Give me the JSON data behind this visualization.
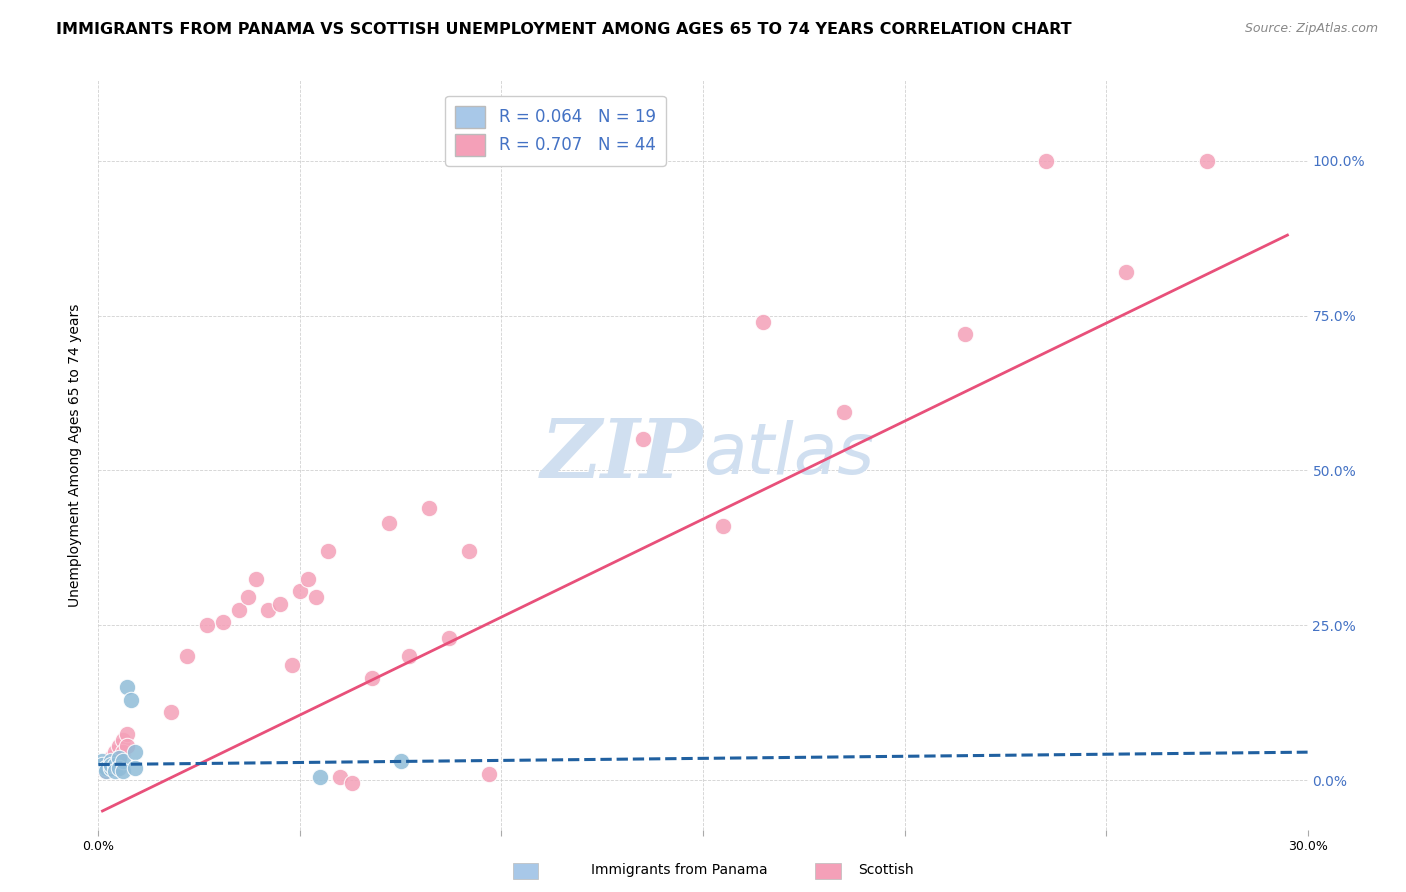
{
  "title": "IMMIGRANTS FROM PANAMA VS SCOTTISH UNEMPLOYMENT AMONG AGES 65 TO 74 YEARS CORRELATION CHART",
  "source": "Source: ZipAtlas.com",
  "ylabel": "Unemployment Among Ages 65 to 74 years",
  "xlim": [
    0.0,
    0.3
  ],
  "ylim": [
    -0.08,
    1.13
  ],
  "ytick_values": [
    0.0,
    0.25,
    0.5,
    0.75,
    1.0
  ],
  "xtick_labels": [
    "0.0%",
    "",
    "",
    "",
    "",
    "",
    "30.0%"
  ],
  "xtick_values": [
    0.0,
    0.05,
    0.1,
    0.15,
    0.2,
    0.25,
    0.3
  ],
  "blue_color": "#a8c8e8",
  "pink_color": "#f4a0b8",
  "blue_scatter_color": "#90bcd8",
  "pink_scatter_color": "#f4a0b8",
  "blue_line_color": "#2060a0",
  "pink_line_color": "#e8507a",
  "watermark_color": "#d0dff0",
  "watermark_fontsize": 60,
  "title_fontsize": 11.5,
  "axis_label_fontsize": 10,
  "tick_fontsize": 9,
  "legend_fontsize": 12,
  "source_fontsize": 9,
  "blue_points": [
    [
      0.001,
      0.03
    ],
    [
      0.001,
      0.025
    ],
    [
      0.002,
      0.02
    ],
    [
      0.002,
      0.015
    ],
    [
      0.003,
      0.03
    ],
    [
      0.003,
      0.02
    ],
    [
      0.003,
      0.025
    ],
    [
      0.004,
      0.025
    ],
    [
      0.004,
      0.015
    ],
    [
      0.005,
      0.035
    ],
    [
      0.005,
      0.02
    ],
    [
      0.006,
      0.03
    ],
    [
      0.006,
      0.015
    ],
    [
      0.007,
      0.15
    ],
    [
      0.008,
      0.13
    ],
    [
      0.009,
      0.045
    ],
    [
      0.009,
      0.02
    ],
    [
      0.055,
      0.005
    ],
    [
      0.075,
      0.03
    ]
  ],
  "pink_points": [
    [
      0.001,
      0.02
    ],
    [
      0.002,
      0.025
    ],
    [
      0.002,
      0.015
    ],
    [
      0.003,
      0.035
    ],
    [
      0.003,
      0.02
    ],
    [
      0.004,
      0.045
    ],
    [
      0.004,
      0.03
    ],
    [
      0.005,
      0.055
    ],
    [
      0.005,
      0.035
    ],
    [
      0.006,
      0.065
    ],
    [
      0.006,
      0.045
    ],
    [
      0.007,
      0.075
    ],
    [
      0.007,
      0.055
    ],
    [
      0.018,
      0.11
    ],
    [
      0.022,
      0.2
    ],
    [
      0.027,
      0.25
    ],
    [
      0.031,
      0.255
    ],
    [
      0.035,
      0.275
    ],
    [
      0.037,
      0.295
    ],
    [
      0.039,
      0.325
    ],
    [
      0.042,
      0.275
    ],
    [
      0.045,
      0.285
    ],
    [
      0.048,
      0.185
    ],
    [
      0.05,
      0.305
    ],
    [
      0.052,
      0.325
    ],
    [
      0.054,
      0.295
    ],
    [
      0.057,
      0.37
    ],
    [
      0.06,
      0.005
    ],
    [
      0.063,
      -0.005
    ],
    [
      0.068,
      0.165
    ],
    [
      0.072,
      0.415
    ],
    [
      0.077,
      0.2
    ],
    [
      0.082,
      0.44
    ],
    [
      0.087,
      0.23
    ],
    [
      0.092,
      0.37
    ],
    [
      0.097,
      0.01
    ],
    [
      0.135,
      0.55
    ],
    [
      0.155,
      0.41
    ],
    [
      0.165,
      0.74
    ],
    [
      0.185,
      0.595
    ],
    [
      0.215,
      0.72
    ],
    [
      0.235,
      1.0
    ],
    [
      0.255,
      0.82
    ],
    [
      0.275,
      1.0
    ]
  ],
  "blue_line_x": [
    0.0,
    0.3
  ],
  "blue_line_y": [
    0.025,
    0.045
  ],
  "pink_line_x": [
    0.001,
    0.295
  ],
  "pink_line_y": [
    -0.05,
    0.88
  ]
}
